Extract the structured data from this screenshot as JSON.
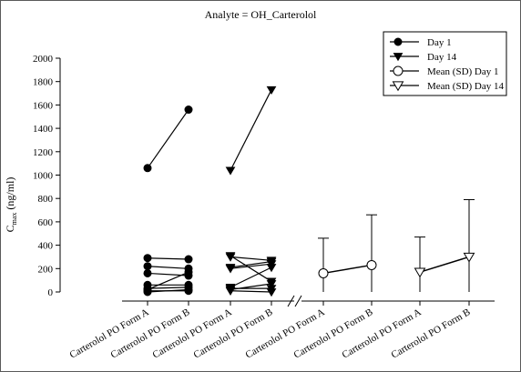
{
  "chart_data": {
    "type": "line",
    "title": "Analyte = OH_Carterolol",
    "ylabel_main": "C",
    "ylabel_sub": "max",
    "ylabel_unit": " (ng/ml)",
    "ylim": [
      0,
      2000
    ],
    "yticks": [
      0,
      200,
      400,
      600,
      800,
      1000,
      1200,
      1400,
      1600,
      1800,
      2000
    ],
    "categories": [
      "Carterolol PO Form A",
      "Carterolol PO Form B",
      "Carterolol PO Form A",
      "Carterolol PO Form B",
      "Carterolol PO Form A",
      "Carterolol PO Form B",
      "Carterolol PO Form A",
      "Carterolol PO Form B"
    ],
    "legend": {
      "placement": "top-right",
      "entries": [
        {
          "label": "Day 1",
          "marker": "circle-filled"
        },
        {
          "label": "Day 14",
          "marker": "triangle-down-filled"
        },
        {
          "label": "Mean (SD) Day 1",
          "marker": "circle-open"
        },
        {
          "label": "Mean (SD) Day 14",
          "marker": "triangle-down-open"
        }
      ]
    },
    "series": [
      {
        "name": "Day 1",
        "marker": "circle-filled",
        "x_index": [
          0,
          1
        ],
        "subjects": [
          [
            1060,
            1560
          ],
          [
            290,
            280
          ],
          [
            220,
            200
          ],
          [
            160,
            140
          ],
          [
            60,
            60
          ],
          [
            30,
            40
          ],
          [
            20,
            170
          ],
          [
            10,
            10
          ],
          [
            0,
            20
          ]
        ]
      },
      {
        "name": "Day 14",
        "marker": "triangle-down-filled",
        "x_index": [
          2,
          3
        ],
        "subjects": [
          [
            1040,
            1730
          ],
          [
            310,
            90
          ],
          [
            300,
            270
          ],
          [
            210,
            260
          ],
          [
            200,
            240
          ],
          [
            40,
            210
          ],
          [
            30,
            30
          ],
          [
            20,
            70
          ],
          [
            10,
            0
          ]
        ]
      },
      {
        "name": "Mean (SD) Day 1",
        "marker": "circle-open",
        "x_index": [
          4,
          5
        ],
        "mean": [
          160,
          230
        ],
        "sd": [
          300,
          430
        ]
      },
      {
        "name": "Mean (SD) Day 14",
        "marker": "triangle-down-open",
        "x_index": [
          6,
          7
        ],
        "mean": [
          170,
          300
        ],
        "sd": [
          300,
          490
        ]
      }
    ]
  }
}
